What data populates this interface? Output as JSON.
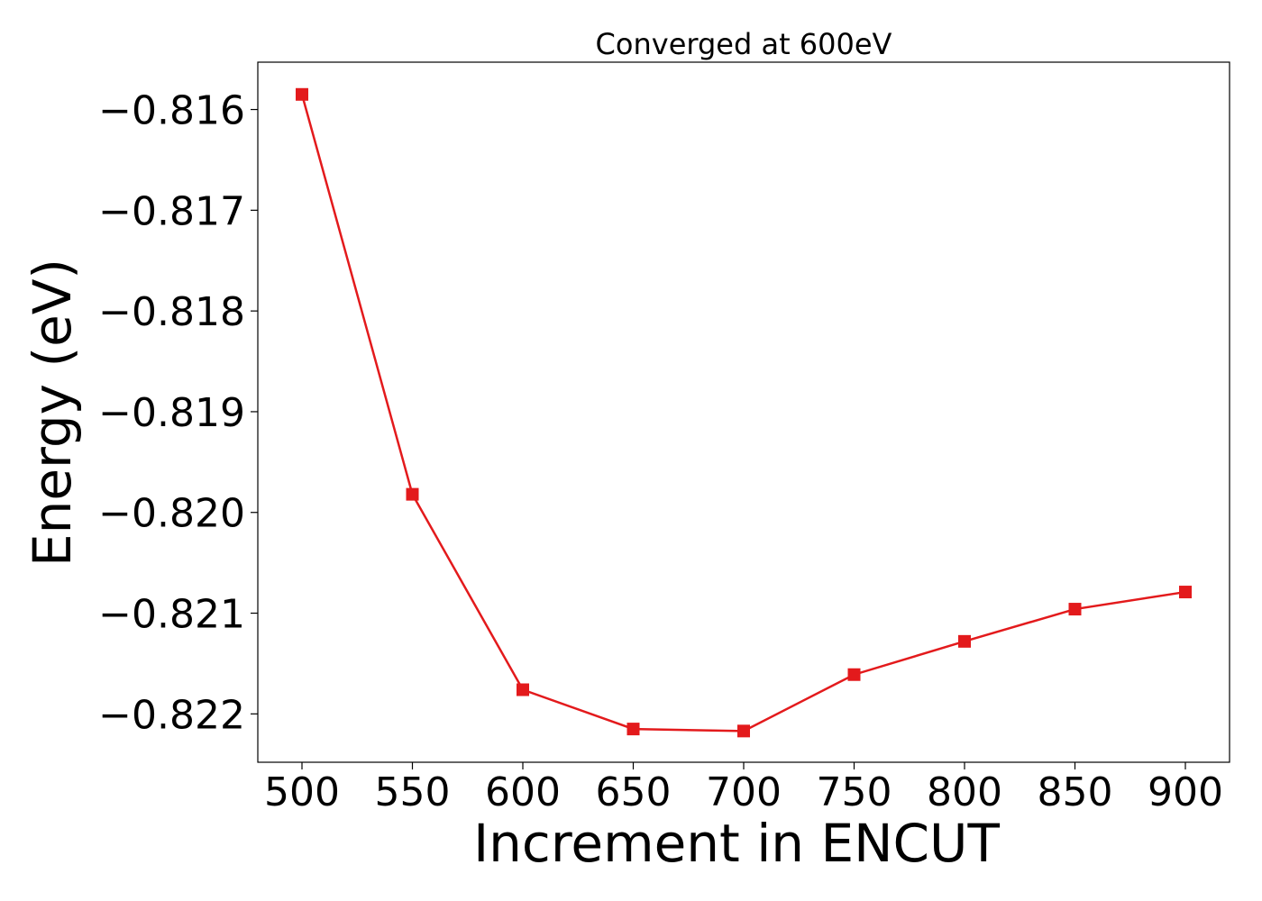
{
  "chart_data": {
    "type": "line",
    "title": "Converged at 600eV",
    "xlabel": "Increment in ENCUT",
    "ylabel": "Energy (eV)",
    "x": [
      500,
      550,
      600,
      650,
      700,
      750,
      800,
      850,
      900
    ],
    "series": [
      {
        "values": [
          -0.81585,
          -0.81982,
          -0.82176,
          -0.82215,
          -0.82217,
          -0.82161,
          -0.82128,
          -0.82096,
          -0.82079
        ],
        "color": "#e31a1c",
        "marker": "square"
      }
    ],
    "xticks": [
      500,
      550,
      600,
      650,
      700,
      750,
      800,
      850,
      900
    ],
    "xtick_labels": [
      "500",
      "550",
      "600",
      "650",
      "700",
      "750",
      "800",
      "850",
      "900"
    ],
    "yticks": [
      -0.816,
      -0.817,
      -0.818,
      -0.819,
      -0.82,
      -0.821,
      -0.822
    ],
    "ytick_labels": [
      "−0.816",
      "−0.817",
      "−0.818",
      "−0.819",
      "−0.820",
      "−0.821",
      "−0.822"
    ],
    "xlim": [
      480,
      920
    ],
    "ylim": [
      -0.82248,
      -0.81553
    ],
    "grid": false,
    "legend": "none"
  }
}
